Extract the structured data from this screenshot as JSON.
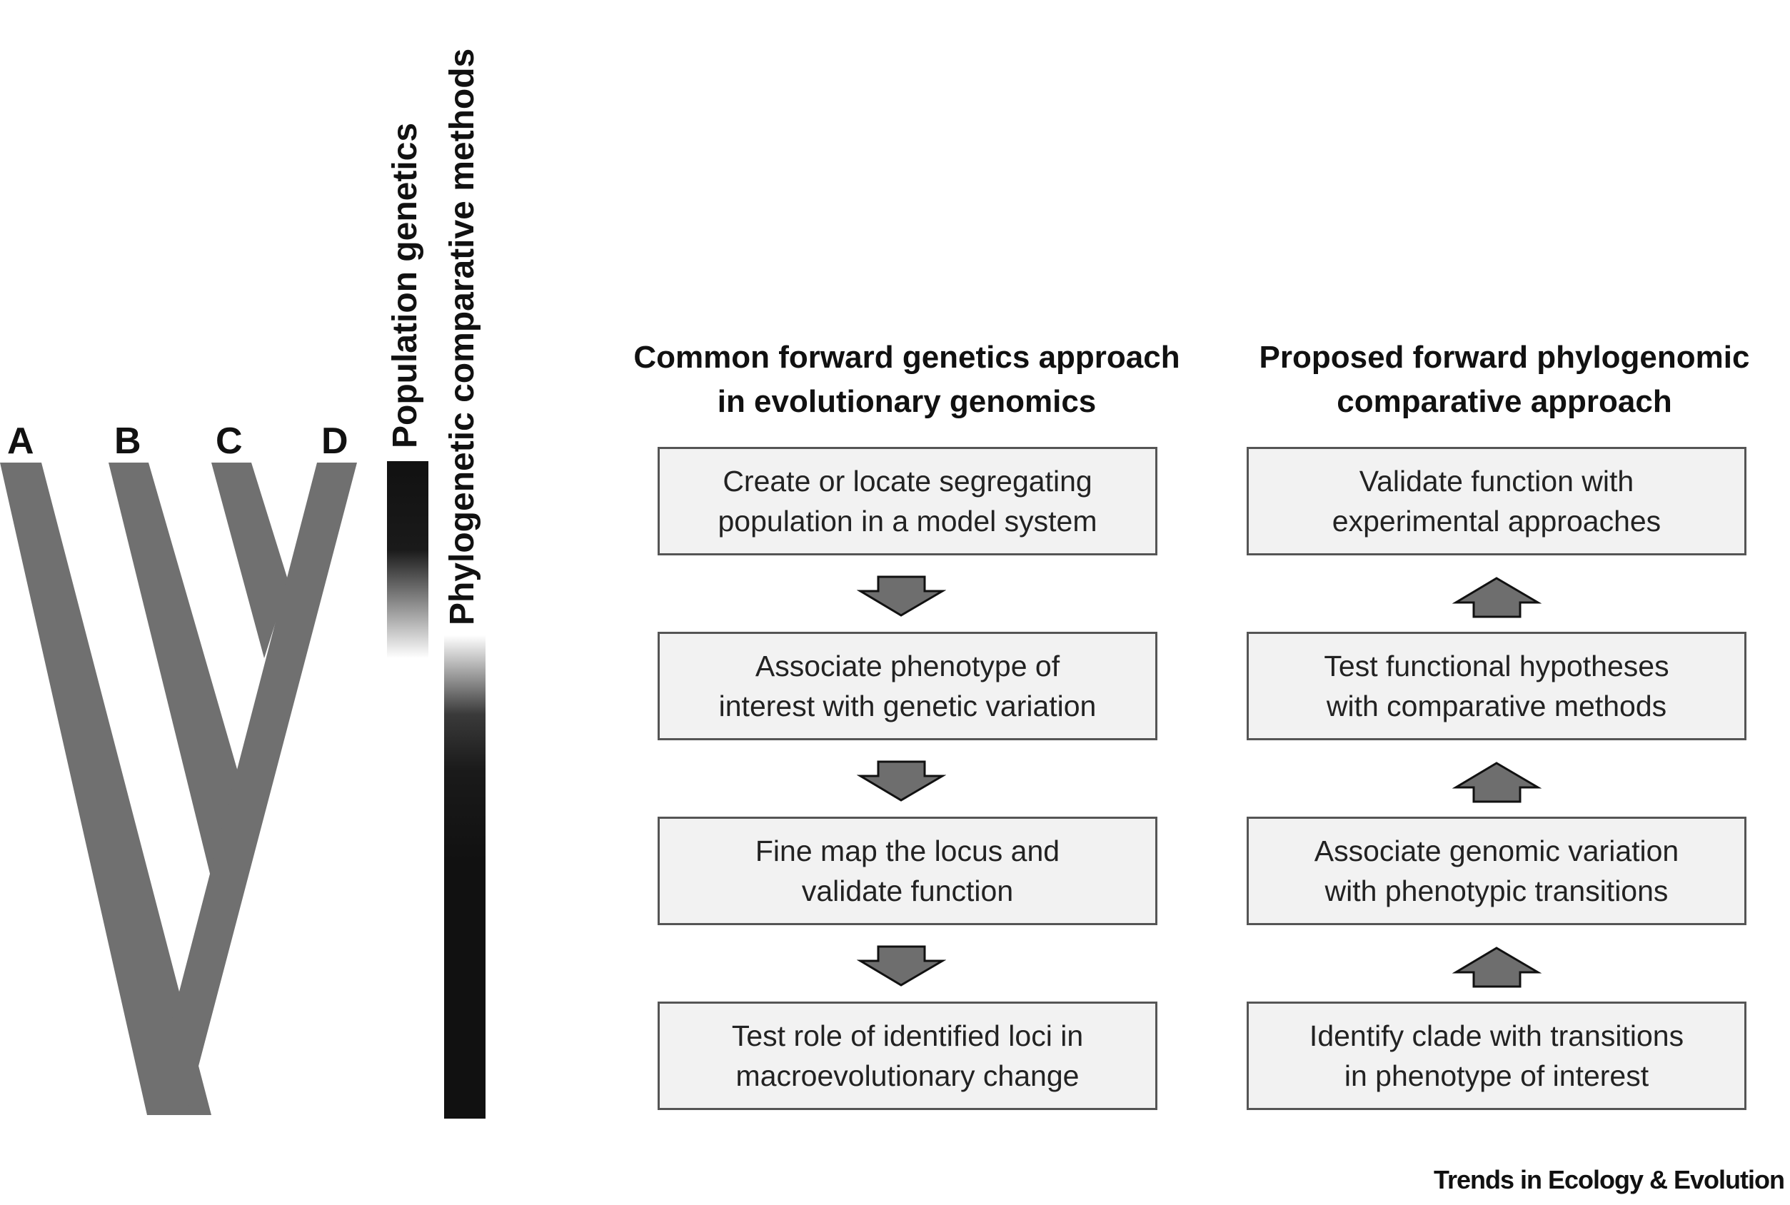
{
  "tree": {
    "tips": [
      "A",
      "B",
      "C",
      "D"
    ],
    "branch_color": "#707070"
  },
  "bars": {
    "population_genetics": "Population genetics",
    "phylogenetic_methods": "Phylogenetic comparative methods"
  },
  "left_column": {
    "heading_line1": "Common forward genetics approach",
    "heading_line2": "in evolutionary genomics",
    "steps": [
      {
        "line1": "Create or locate segregating",
        "line2": "population in a model system"
      },
      {
        "line1": "Associate phenotype of",
        "line2": "interest with genetic variation"
      },
      {
        "line1": "Fine map the locus and",
        "line2": "validate function"
      },
      {
        "line1": "Test role of identified loci in",
        "line2": "macroevolutionary change"
      }
    ],
    "arrow_direction": "down"
  },
  "right_column": {
    "heading_line1": "Proposed forward phylogenomic",
    "heading_line2": "comparative approach",
    "steps": [
      {
        "line1": "Validate function with",
        "line2": "experimental approaches"
      },
      {
        "line1": "Test functional hypotheses",
        "line2": "with comparative methods"
      },
      {
        "line1": "Associate genomic variation",
        "line2": "with phenotypic transitions"
      },
      {
        "line1": "Identify clade with transitions",
        "line2": "in phenotype of interest"
      }
    ],
    "arrow_direction": "up"
  },
  "colors": {
    "box_fill": "#f2f2f2",
    "box_border": "#555555",
    "arrow_fill": "#6e6e6e"
  },
  "credit": "Trends in Ecology & Evolution"
}
